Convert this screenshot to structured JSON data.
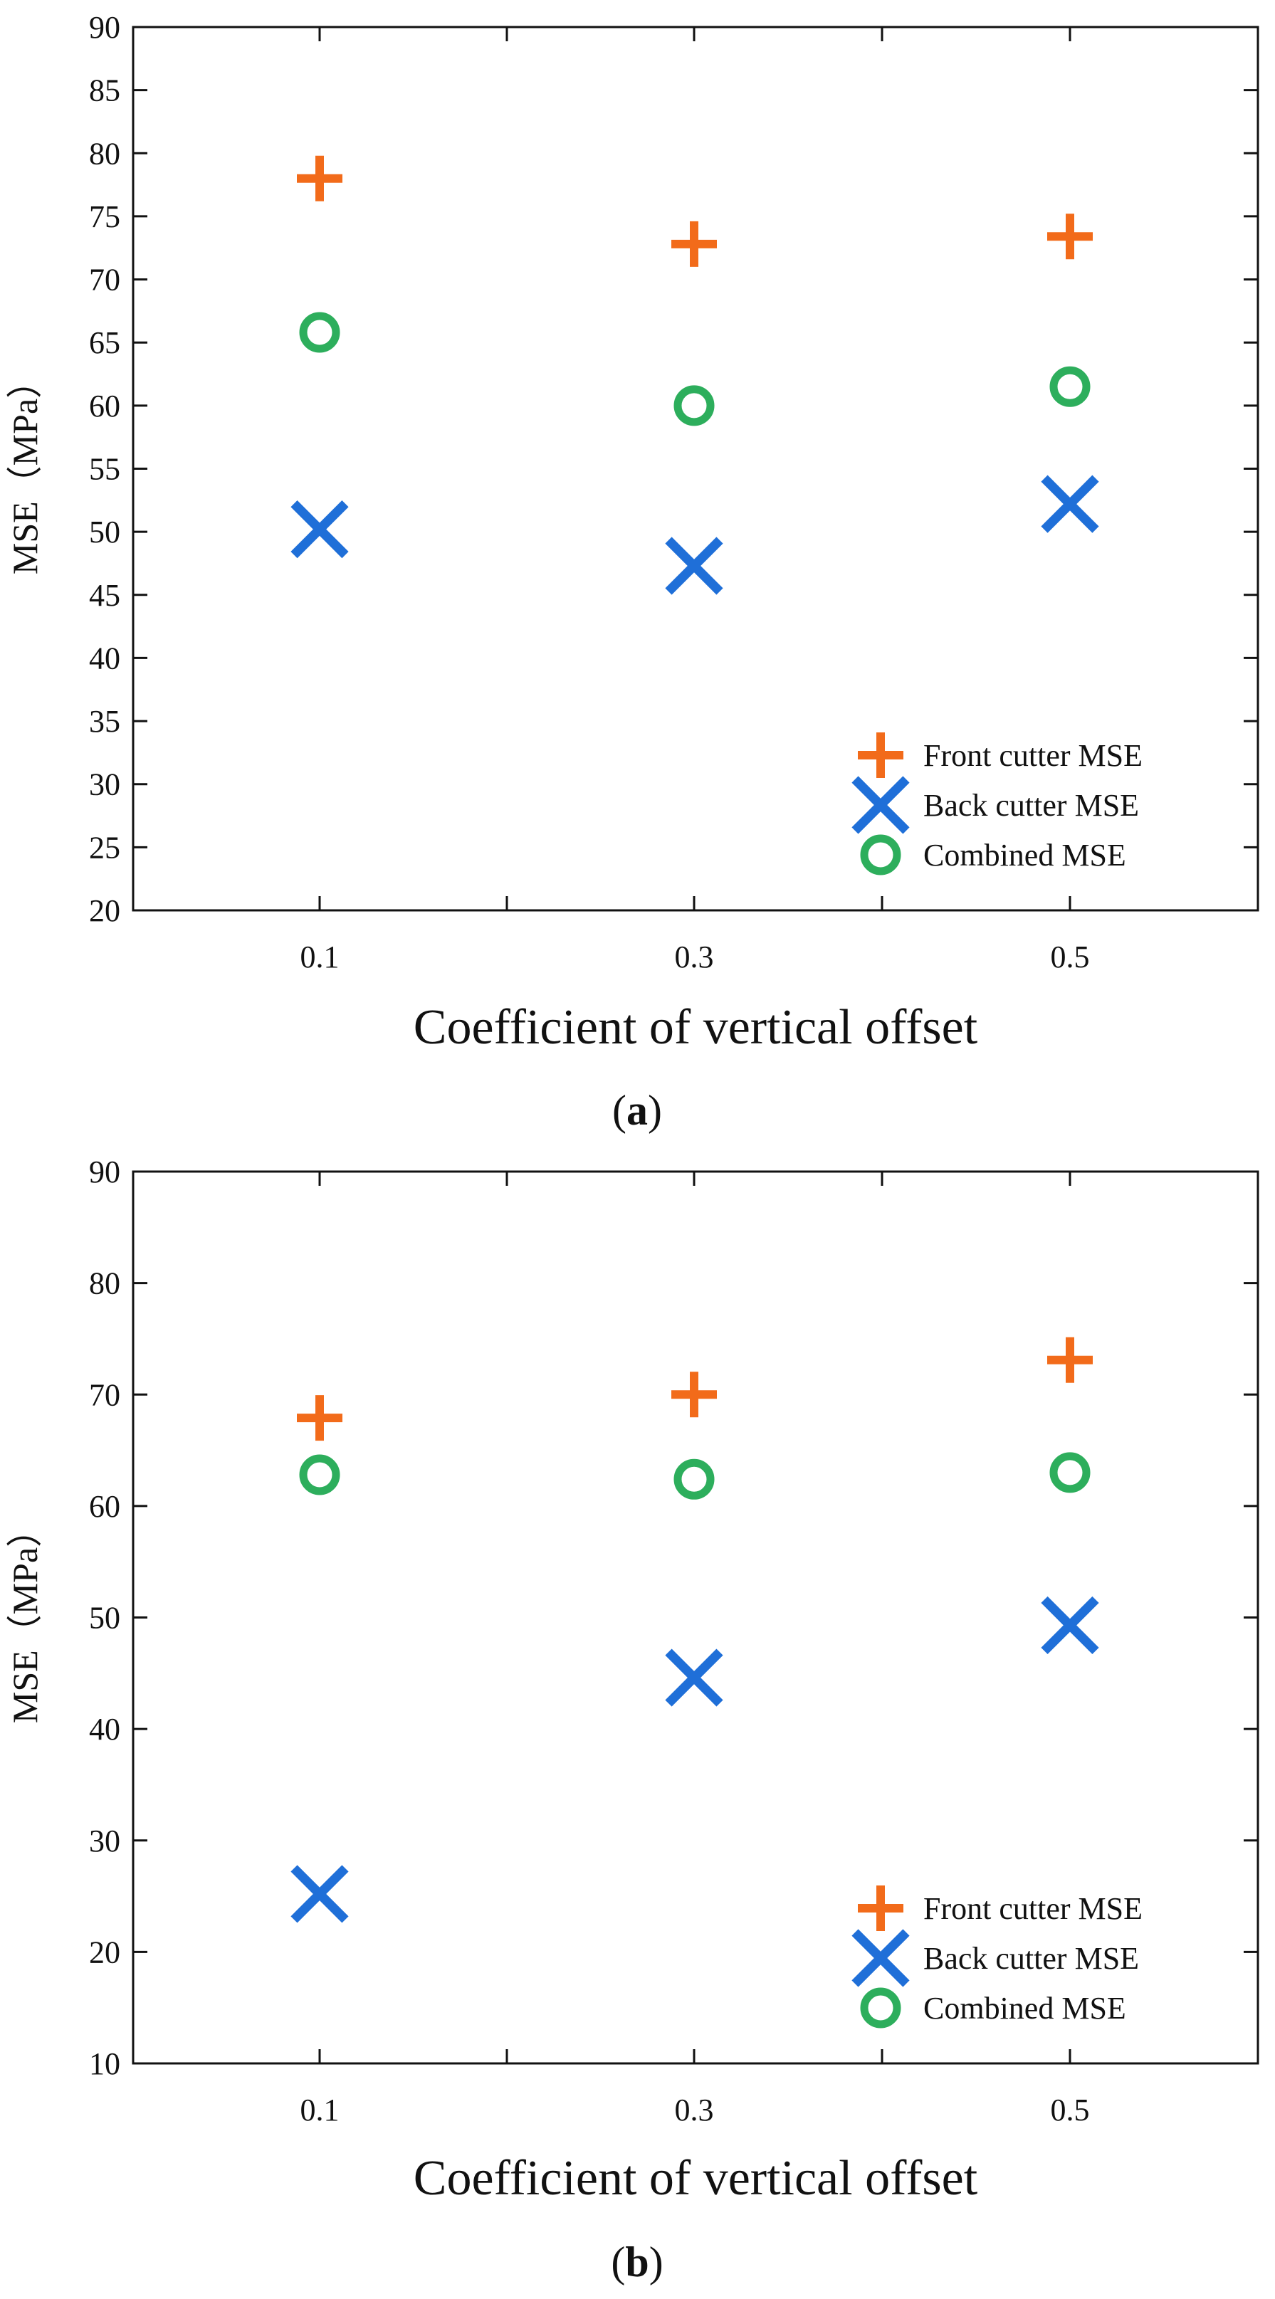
{
  "colors": {
    "front": "#F26B1A",
    "back": "#1F6FD8",
    "combined": "#2DAE5C"
  },
  "chart_data": [
    {
      "type": "scatter",
      "panel_label": "a",
      "xlabel": "Coefficient of vertical offset",
      "ylabel": "MSE（MPa）",
      "x_tick_labels": [
        "0.1",
        "0.3",
        "0.5"
      ],
      "xlim": [
        0.0,
        0.6
      ],
      "ylim": [
        20,
        90
      ],
      "y_ticks": [
        20,
        25,
        30,
        35,
        40,
        45,
        50,
        55,
        60,
        65,
        70,
        75,
        80,
        85,
        90
      ],
      "grid": false,
      "legend_position": "bottom-right",
      "series": [
        {
          "name": "Front cutter MSE",
          "key": "front",
          "marker": "plus",
          "x": [
            0.1,
            0.3,
            0.5
          ],
          "values": [
            78.0,
            72.8,
            73.4
          ]
        },
        {
          "name": "Back cutter MSE",
          "key": "back",
          "marker": "x",
          "x": [
            0.1,
            0.3,
            0.5
          ],
          "values": [
            50.2,
            47.3,
            52.2
          ]
        },
        {
          "name": "Combined MSE",
          "key": "combined",
          "marker": "circle",
          "x": [
            0.1,
            0.3,
            0.5
          ],
          "values": [
            65.8,
            60.0,
            61.5
          ]
        }
      ]
    },
    {
      "type": "scatter",
      "panel_label": "b",
      "xlabel": "Coefficient of vertical offset",
      "ylabel": "MSE（MPa）",
      "x_tick_labels": [
        "0.1",
        "0.3",
        "0.5"
      ],
      "xlim": [
        0.0,
        0.6
      ],
      "ylim": [
        10,
        90
      ],
      "y_ticks": [
        10,
        20,
        30,
        40,
        50,
        60,
        70,
        80,
        90
      ],
      "grid": false,
      "legend_position": "bottom-right",
      "series": [
        {
          "name": "Front cutter MSE",
          "key": "front",
          "marker": "plus",
          "x": [
            0.1,
            0.3,
            0.5
          ],
          "values": [
            67.9,
            70.0,
            73.1
          ]
        },
        {
          "name": "Back cutter MSE",
          "key": "back",
          "marker": "x",
          "x": [
            0.1,
            0.3,
            0.5
          ],
          "values": [
            25.2,
            44.6,
            49.3
          ]
        },
        {
          "name": "Combined MSE",
          "key": "combined",
          "marker": "circle",
          "x": [
            0.1,
            0.3,
            0.5
          ],
          "values": [
            62.8,
            62.4,
            63.0
          ]
        }
      ]
    }
  ]
}
